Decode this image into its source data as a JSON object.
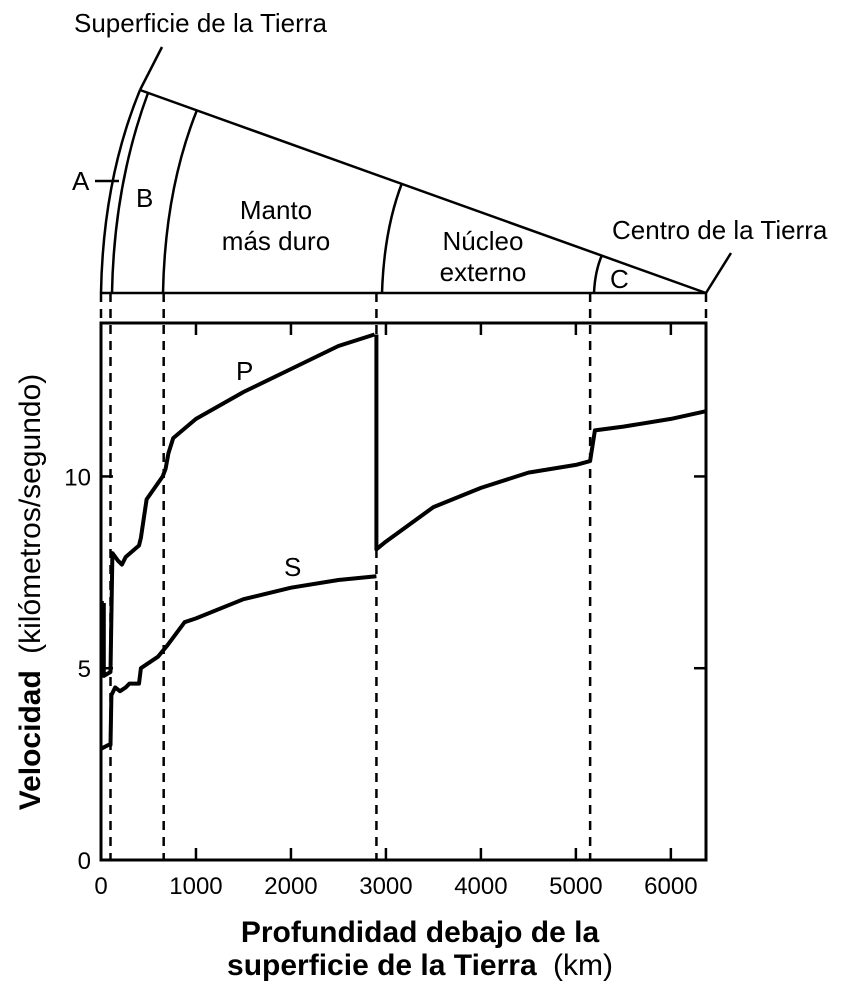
{
  "wedge": {
    "surface_label": "Superficie de la Tierra",
    "center_label": "Centro de la Tierra",
    "layer_a": "A",
    "layer_b": "B",
    "mantle_line1": "Manto",
    "mantle_line2": "más duro",
    "outer_core_line1": "Núcleo",
    "outer_core_line2": "externo",
    "layer_c": "C"
  },
  "chart_data": {
    "type": "line",
    "xlabel_bold_line1": "Profundidad debajo de la",
    "xlabel_bold_line2": "superficie de la Tierra",
    "xlabel_unit": "(km)",
    "ylabel_bold": "Velocidad",
    "ylabel_rest": "(kilómetros/segundo)",
    "xlim": [
      0,
      6370
    ],
    "ylim": [
      0,
      14
    ],
    "x_ticks": [
      0,
      1000,
      2000,
      3000,
      4000,
      5000,
      6000
    ],
    "y_ticks": [
      0,
      5,
      10
    ],
    "boundaries_km": [
      100,
      660,
      2900,
      5150
    ],
    "series": [
      {
        "name": "P",
        "segments": [
          [
            [
              0,
              5.6
            ],
            [
              10,
              5.6
            ],
            [
              10,
              6.7
            ],
            [
              30,
              6.7
            ]
          ],
          [
            [
              30,
              4.8
            ],
            [
              100,
              4.9
            ],
            [
              120,
              8.0
            ],
            [
              180,
              7.8
            ],
            [
              220,
              7.7
            ],
            [
              260,
              7.9
            ],
            [
              400,
              8.2
            ],
            [
              420,
              8.4
            ],
            [
              480,
              9.4
            ],
            [
              650,
              10.0
            ],
            [
              680,
              10.2
            ],
            [
              710,
              10.6
            ],
            [
              760,
              11.0
            ],
            [
              1000,
              11.5
            ],
            [
              1500,
              12.2
            ],
            [
              2000,
              12.8
            ],
            [
              2500,
              13.4
            ],
            [
              2880,
              13.7
            ]
          ],
          [
            [
              2900,
              8.1
            ],
            [
              3000,
              8.3
            ],
            [
              3500,
              9.2
            ],
            [
              4000,
              9.7
            ],
            [
              4500,
              10.1
            ],
            [
              5000,
              10.3
            ],
            [
              5150,
              10.4
            ],
            [
              5200,
              11.2
            ],
            [
              5500,
              11.3
            ],
            [
              6000,
              11.5
            ],
            [
              6370,
              11.7
            ]
          ]
        ]
      },
      {
        "name": "S",
        "segments": [
          [
            [
              0,
              2.9
            ],
            [
              80,
              3.0
            ],
            [
              100,
              3.0
            ],
            [
              110,
              4.3
            ],
            [
              150,
              4.5
            ],
            [
              200,
              4.4
            ],
            [
              260,
              4.5
            ],
            [
              300,
              4.6
            ],
            [
              350,
              4.6
            ],
            [
              400,
              4.6
            ],
            [
              420,
              5.0
            ],
            [
              600,
              5.3
            ],
            [
              700,
              5.6
            ],
            [
              880,
              6.2
            ],
            [
              1000,
              6.3
            ],
            [
              1500,
              6.8
            ],
            [
              2000,
              7.1
            ],
            [
              2500,
              7.3
            ],
            [
              2900,
              7.4
            ]
          ]
        ]
      }
    ]
  }
}
